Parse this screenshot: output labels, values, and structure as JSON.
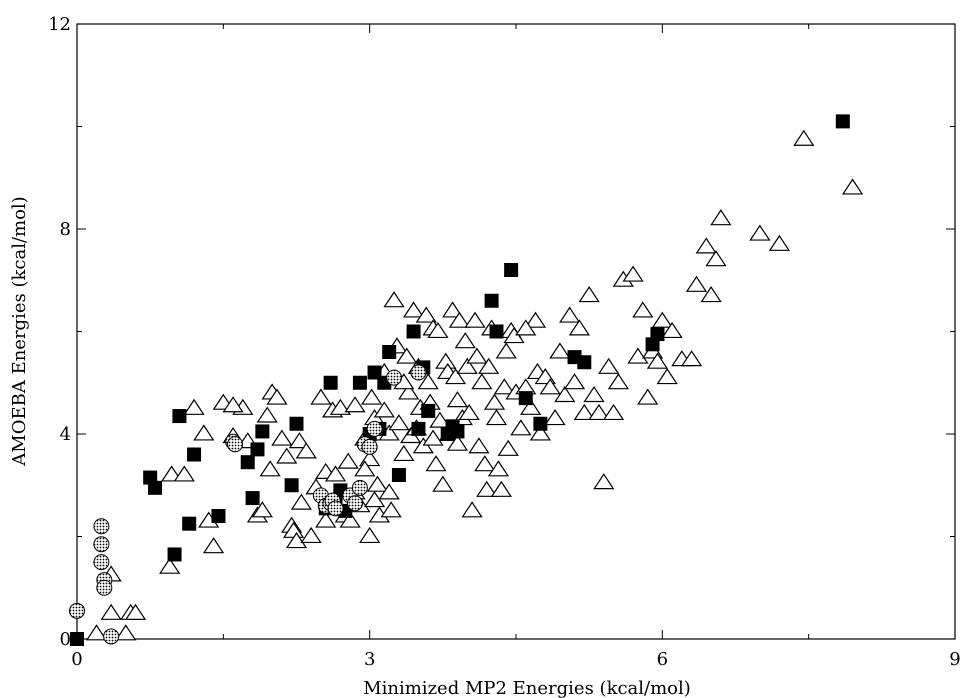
{
  "chart_data": {
    "type": "scatter",
    "title": "",
    "xlabel": "Minimized MP2 Energies (kcal/mol)",
    "ylabel": "AMOEBA Energies (kcal/mol)",
    "xlim": [
      0,
      9
    ],
    "ylim": [
      0,
      12
    ],
    "x_ticks": [
      0,
      3,
      6,
      9
    ],
    "y_ticks": [
      0,
      4,
      8,
      12
    ],
    "x_tick_labels": [
      "0",
      "3",
      "6",
      "9"
    ],
    "y_tick_labels": [
      "0",
      "4",
      "8",
      "12"
    ],
    "grid": false,
    "legend": false,
    "series": [
      {
        "marker": "triangle-open",
        "color": "#000000",
        "points": [
          [
            0.2,
            0.1
          ],
          [
            0.35,
            1.25
          ],
          [
            0.35,
            0.5
          ],
          [
            0.5,
            0.1
          ],
          [
            0.55,
            0.5
          ],
          [
            0.6,
            0.5
          ],
          [
            0.95,
            1.4
          ],
          [
            0.97,
            3.2
          ],
          [
            1.2,
            4.5
          ],
          [
            1.3,
            4.0
          ],
          [
            1.35,
            2.3
          ],
          [
            1.4,
            1.8
          ],
          [
            1.5,
            4.6
          ],
          [
            1.6,
            3.95
          ],
          [
            1.7,
            4.5
          ],
          [
            1.75,
            3.85
          ],
          [
            1.85,
            2.4
          ],
          [
            1.9,
            2.5
          ],
          [
            1.95,
            4.35
          ],
          [
            1.98,
            3.3
          ],
          [
            2.0,
            4.8
          ],
          [
            2.05,
            4.7
          ],
          [
            2.1,
            3.9
          ],
          [
            2.15,
            3.55
          ],
          [
            2.2,
            2.2
          ],
          [
            2.22,
            2.1
          ],
          [
            2.25,
            1.9
          ],
          [
            2.28,
            3.85
          ],
          [
            2.3,
            2.65
          ],
          [
            2.35,
            3.65
          ],
          [
            2.4,
            2.0
          ],
          [
            2.45,
            2.95
          ],
          [
            2.5,
            4.7
          ],
          [
            2.55,
            3.25
          ],
          [
            2.6,
            2.6
          ],
          [
            2.62,
            4.45
          ],
          [
            2.65,
            3.2
          ],
          [
            2.7,
            4.5
          ],
          [
            2.75,
            2.4
          ],
          [
            2.78,
            3.45
          ],
          [
            2.8,
            2.3
          ],
          [
            2.85,
            4.55
          ],
          [
            2.9,
            2.6
          ],
          [
            2.95,
            3.9
          ],
          [
            3.0,
            3.5
          ],
          [
            3.02,
            4.7
          ],
          [
            3.05,
            4.3
          ],
          [
            3.08,
            3.0
          ],
          [
            3.1,
            2.4
          ],
          [
            3.12,
            4.0
          ],
          [
            3.15,
            5.2
          ],
          [
            3.2,
            4.0
          ],
          [
            3.22,
            2.5
          ],
          [
            3.25,
            6.6
          ],
          [
            3.28,
            5.7
          ],
          [
            3.3,
            4.2
          ],
          [
            3.35,
            3.6
          ],
          [
            3.38,
            5.5
          ],
          [
            3.4,
            4.8
          ],
          [
            3.42,
            3.95
          ],
          [
            3.45,
            6.4
          ],
          [
            3.48,
            4.1
          ],
          [
            3.5,
            5.3
          ],
          [
            3.52,
            4.5
          ],
          [
            3.55,
            3.75
          ],
          [
            3.58,
            6.3
          ],
          [
            3.6,
            5.0
          ],
          [
            3.62,
            4.6
          ],
          [
            3.65,
            6.05
          ],
          [
            3.68,
            3.4
          ],
          [
            3.7,
            6.0
          ],
          [
            3.72,
            4.25
          ],
          [
            3.75,
            3.0
          ],
          [
            3.78,
            5.4
          ],
          [
            3.8,
            5.2
          ],
          [
            3.82,
            4.0
          ],
          [
            3.85,
            6.4
          ],
          [
            3.88,
            5.1
          ],
          [
            3.9,
            4.65
          ],
          [
            3.92,
            6.2
          ],
          [
            3.95,
            4.3
          ],
          [
            3.98,
            5.8
          ],
          [
            4.0,
            5.3
          ],
          [
            4.02,
            4.4
          ],
          [
            4.05,
            2.5
          ],
          [
            4.08,
            6.2
          ],
          [
            4.1,
            5.5
          ],
          [
            4.12,
            3.75
          ],
          [
            4.15,
            5.0
          ],
          [
            4.18,
            3.4
          ],
          [
            4.2,
            2.9
          ],
          [
            4.22,
            5.3
          ],
          [
            4.25,
            6.05
          ],
          [
            4.28,
            4.6
          ],
          [
            4.3,
            4.3
          ],
          [
            4.32,
            3.3
          ],
          [
            4.35,
            2.9
          ],
          [
            4.38,
            4.9
          ],
          [
            4.4,
            5.6
          ],
          [
            4.42,
            3.7
          ],
          [
            4.45,
            6.0
          ],
          [
            4.48,
            5.9
          ],
          [
            4.5,
            4.8
          ],
          [
            4.55,
            4.1
          ],
          [
            4.6,
            4.9
          ],
          [
            4.65,
            4.5
          ],
          [
            4.7,
            6.2
          ],
          [
            4.72,
            5.2
          ],
          [
            4.75,
            4.0
          ],
          [
            4.8,
            5.1
          ],
          [
            4.85,
            4.9
          ],
          [
            4.9,
            4.3
          ],
          [
            4.95,
            5.6
          ],
          [
            5.0,
            4.75
          ],
          [
            5.05,
            6.3
          ],
          [
            5.1,
            5.0
          ],
          [
            5.15,
            6.05
          ],
          [
            5.2,
            4.4
          ],
          [
            5.25,
            6.7
          ],
          [
            5.3,
            4.75
          ],
          [
            5.35,
            4.4
          ],
          [
            5.4,
            3.05
          ],
          [
            5.45,
            5.3
          ],
          [
            5.5,
            4.4
          ],
          [
            5.55,
            5.0
          ],
          [
            5.6,
            7.0
          ],
          [
            5.7,
            7.1
          ],
          [
            5.75,
            5.5
          ],
          [
            5.8,
            6.4
          ],
          [
            5.85,
            4.7
          ],
          [
            5.9,
            5.6
          ],
          [
            5.95,
            5.4
          ],
          [
            6.0,
            6.2
          ],
          [
            6.05,
            5.1
          ],
          [
            6.1,
            6.0
          ],
          [
            6.2,
            5.45
          ],
          [
            6.3,
            5.45
          ],
          [
            6.35,
            6.9
          ],
          [
            6.45,
            7.65
          ],
          [
            6.5,
            6.7
          ],
          [
            6.55,
            7.4
          ],
          [
            6.6,
            8.2
          ],
          [
            7.0,
            7.9
          ],
          [
            7.2,
            7.7
          ],
          [
            7.45,
            9.75
          ],
          [
            7.95,
            8.8
          ],
          [
            2.55,
            2.3
          ],
          [
            2.85,
            2.85
          ],
          [
            3.2,
            2.85
          ],
          [
            3.05,
            2.7
          ],
          [
            2.95,
            3.3
          ],
          [
            3.65,
            3.9
          ],
          [
            3.9,
            3.8
          ],
          [
            3.15,
            4.45
          ],
          [
            3.35,
            5.0
          ],
          [
            4.6,
            6.05
          ],
          [
            3.0,
            2.0
          ],
          [
            1.6,
            4.55
          ],
          [
            1.1,
            3.2
          ]
        ]
      },
      {
        "marker": "square-filled",
        "color": "#000000",
        "points": [
          [
            0.0,
            0.0
          ],
          [
            0.75,
            3.15
          ],
          [
            0.8,
            2.95
          ],
          [
            1.0,
            1.65
          ],
          [
            1.05,
            4.35
          ],
          [
            1.15,
            2.25
          ],
          [
            1.2,
            3.6
          ],
          [
            1.45,
            2.4
          ],
          [
            1.75,
            3.45
          ],
          [
            1.8,
            2.75
          ],
          [
            1.85,
            3.7
          ],
          [
            1.9,
            4.05
          ],
          [
            2.2,
            3.0
          ],
          [
            2.25,
            4.2
          ],
          [
            2.55,
            2.55
          ],
          [
            2.6,
            5.0
          ],
          [
            2.65,
            2.7
          ],
          [
            2.7,
            2.9
          ],
          [
            2.75,
            2.5
          ],
          [
            2.9,
            5.0
          ],
          [
            3.0,
            4.0
          ],
          [
            3.05,
            5.2
          ],
          [
            3.1,
            4.1
          ],
          [
            3.15,
            5.0
          ],
          [
            3.2,
            5.6
          ],
          [
            3.3,
            3.2
          ],
          [
            3.45,
            6.0
          ],
          [
            3.5,
            4.1
          ],
          [
            3.55,
            5.3
          ],
          [
            3.6,
            4.45
          ],
          [
            3.8,
            4.0
          ],
          [
            3.85,
            4.15
          ],
          [
            3.9,
            4.05
          ],
          [
            4.25,
            6.6
          ],
          [
            4.3,
            6.0
          ],
          [
            4.45,
            7.2
          ],
          [
            4.6,
            4.7
          ],
          [
            4.75,
            4.2
          ],
          [
            5.1,
            5.5
          ],
          [
            5.2,
            5.4
          ],
          [
            5.9,
            5.75
          ],
          [
            5.95,
            5.95
          ],
          [
            7.85,
            10.1
          ]
        ]
      },
      {
        "marker": "circle-hatched",
        "color": "#000000",
        "points": [
          [
            0.0,
            0.55
          ],
          [
            0.25,
            2.2
          ],
          [
            0.25,
            1.85
          ],
          [
            0.25,
            1.5
          ],
          [
            0.28,
            1.15
          ],
          [
            0.28,
            1.0
          ],
          [
            0.35,
            0.05
          ],
          [
            1.6,
            3.85
          ],
          [
            1.62,
            3.8
          ],
          [
            2.5,
            2.8
          ],
          [
            2.55,
            2.6
          ],
          [
            2.6,
            2.65
          ],
          [
            2.62,
            2.7
          ],
          [
            2.65,
            2.55
          ],
          [
            2.8,
            2.8
          ],
          [
            2.85,
            2.65
          ],
          [
            2.9,
            2.95
          ],
          [
            2.95,
            3.8
          ],
          [
            3.0,
            3.75
          ],
          [
            3.05,
            4.1
          ],
          [
            3.25,
            5.1
          ],
          [
            3.5,
            5.2
          ]
        ]
      }
    ]
  }
}
